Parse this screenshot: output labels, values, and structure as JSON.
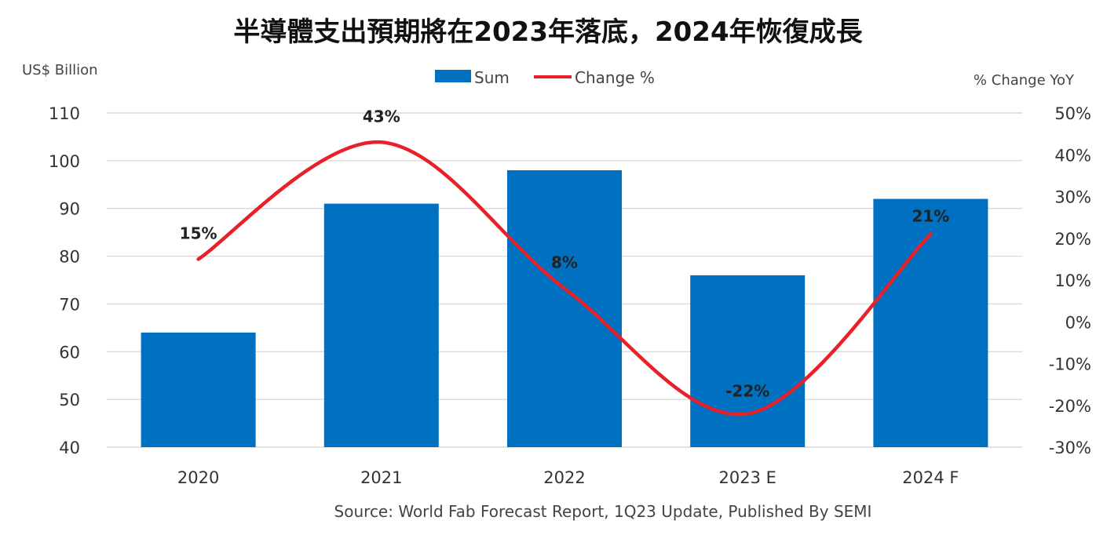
{
  "chart_data": {
    "type": "bar",
    "title": "半導體支出預期將在2023年落底，2024年恢復成長",
    "categories": [
      "2020",
      "2021",
      "2022",
      "2023 E",
      "2024 F"
    ],
    "series": [
      {
        "name": "Sum",
        "type": "bar",
        "axis": "left",
        "values": [
          64,
          91,
          98,
          76,
          92
        ],
        "color": "#0070C0"
      },
      {
        "name": "Change %",
        "type": "line",
        "axis": "right",
        "values": [
          15,
          43,
          8,
          -22,
          21
        ],
        "labels": [
          "15%",
          "43%",
          "8%",
          "-22%",
          "21%"
        ],
        "color": "#E8202A"
      }
    ],
    "y_left": {
      "unit": "US$ Billion",
      "ylim": [
        40,
        110
      ],
      "ticks": [
        "40",
        "50",
        "60",
        "70",
        "80",
        "90",
        "100",
        "110"
      ]
    },
    "y_right": {
      "unit": "% Change YoY",
      "ylim": [
        -30,
        50
      ],
      "ticks": [
        "-30%",
        "-20%",
        "-10%",
        "0%",
        "10%",
        "20%",
        "30%",
        "40%",
        "50%"
      ]
    },
    "grid": true,
    "legend": {
      "position": "top-center",
      "items": [
        "Sum",
        "Change %"
      ]
    },
    "source": "Source: World Fab Forecast Report, 1Q23 Update, Published By SEMI"
  }
}
